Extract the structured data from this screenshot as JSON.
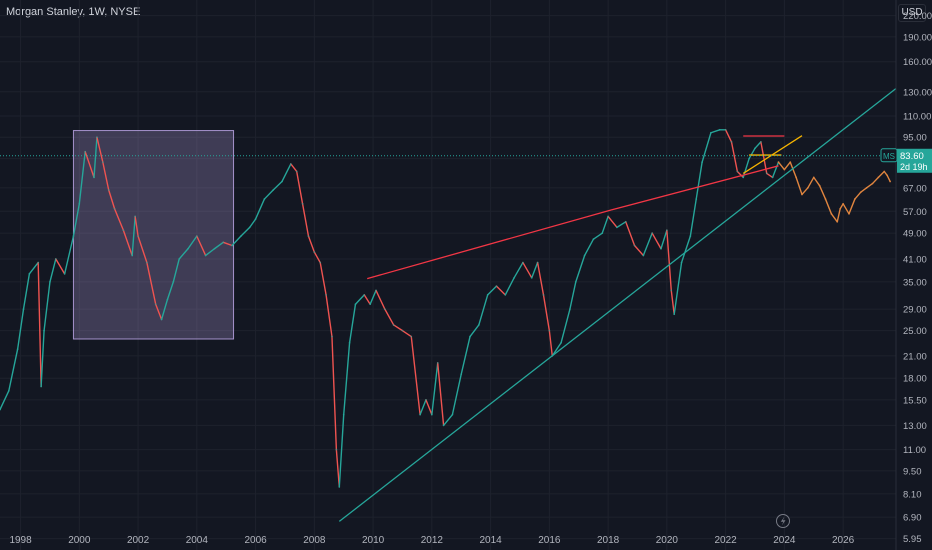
{
  "chart_data": {
    "type": "line",
    "title": "Morgan Stanley, 1W, NYSE",
    "currency": "USD",
    "y_scale": "log",
    "ylim": [
      5.5,
      245
    ],
    "xlim": [
      1997.3,
      2027.8
    ],
    "y_ticks": [
      "220.00",
      "190.00",
      "160.00",
      "130.00",
      "110.00",
      "95.00",
      "82.00",
      "67.00",
      "57.00",
      "49.00",
      "41.00",
      "35.00",
      "29.00",
      "25.00",
      "21.00",
      "18.00",
      "15.50",
      "13.00",
      "11.00",
      "9.50",
      "8.10",
      "6.90",
      "5.95"
    ],
    "x_ticks": [
      "1998",
      "2000",
      "2002",
      "2004",
      "2006",
      "2008",
      "2010",
      "2012",
      "2014",
      "2016",
      "2018",
      "2020",
      "2022",
      "2024",
      "2026"
    ],
    "price_label": {
      "symbol": "MS",
      "value": "83.60",
      "countdown": "2d 19h",
      "level": 83.6
    },
    "series": [
      {
        "role": "price-history",
        "color": "#26a69a",
        "down_color": "#ef5350",
        "x": [
          1997.3,
          1997.6,
          1997.9,
          1998.1,
          1998.3,
          1998.6,
          1998.7,
          1998.8,
          1999.0,
          1999.2,
          1999.5,
          1999.8,
          2000.0,
          2000.2,
          2000.5,
          2000.6,
          2000.8,
          2001.0,
          2001.2,
          2001.5,
          2001.8,
          2001.9,
          2002.0,
          2002.3,
          2002.6,
          2002.8,
          2003.0,
          2003.2,
          2003.4,
          2003.7,
          2004.0,
          2004.3,
          2004.6,
          2004.9,
          2005.2,
          2005.5,
          2005.8,
          2006.0,
          2006.3,
          2006.6,
          2006.9,
          2007.2,
          2007.4,
          2007.6,
          2007.8,
          2008.0,
          2008.2,
          2008.4,
          2008.6,
          2008.75,
          2008.85,
          2009.0,
          2009.2,
          2009.4,
          2009.7,
          2009.9,
          2010.1,
          2010.4,
          2010.7,
          2011.0,
          2011.3,
          2011.6,
          2011.8,
          2012.0,
          2012.2,
          2012.4,
          2012.7,
          2013.0,
          2013.3,
          2013.6,
          2013.9,
          2014.2,
          2014.5,
          2014.8,
          2015.1,
          2015.4,
          2015.6,
          2015.8,
          2016.0,
          2016.1,
          2016.4,
          2016.7,
          2016.9,
          2017.2,
          2017.5,
          2017.8,
          2018.0,
          2018.3,
          2018.6,
          2018.9,
          2019.2,
          2019.5,
          2019.8,
          2020.0,
          2020.15,
          2020.25,
          2020.5,
          2020.8,
          2021.0,
          2021.2,
          2021.5,
          2021.8,
          2022.0,
          2022.2,
          2022.4,
          2022.6,
          2022.8,
          2023.0,
          2023.2,
          2023.4,
          2023.6,
          2023.8
        ],
        "values": [
          14.5,
          16.5,
          22,
          29,
          37,
          40,
          17,
          25,
          35,
          41,
          37,
          48,
          60,
          86,
          72,
          95,
          80,
          66,
          58,
          50,
          42,
          55,
          48,
          40,
          30,
          27,
          31,
          35,
          41,
          44,
          48,
          42,
          44,
          46,
          45,
          48,
          51,
          54,
          62,
          66,
          70,
          79,
          75,
          60,
          48,
          43,
          40,
          32,
          24,
          11,
          8.5,
          14,
          23,
          30,
          32,
          30,
          33,
          29,
          26,
          25,
          24,
          14,
          15.5,
          14,
          20,
          13,
          14,
          18.5,
          24,
          26,
          32,
          34,
          32,
          36,
          40,
          36,
          40,
          32,
          25,
          21,
          23,
          29,
          35,
          42,
          47,
          49,
          55,
          51,
          53,
          45,
          42,
          49,
          44,
          50,
          33,
          28,
          40,
          48,
          62,
          80,
          98,
          100,
          100,
          92,
          75,
          72,
          82,
          88,
          92,
          74,
          72,
          80
        ]
      },
      {
        "role": "projection",
        "color": "#e0853f",
        "x": [
          2023.8,
          2024.0,
          2024.2,
          2024.4,
          2024.6,
          2024.8,
          2025.0,
          2025.2,
          2025.4,
          2025.6,
          2025.8,
          2025.9,
          2026.0,
          2026.2,
          2026.4,
          2026.6,
          2026.8,
          2027.0,
          2027.2,
          2027.4,
          2027.5,
          2027.6
        ],
        "values": [
          80,
          76,
          80,
          72,
          64,
          67,
          72,
          68,
          62,
          56,
          53,
          58,
          60,
          56,
          62,
          65,
          67,
          69,
          72,
          75,
          73,
          70
        ]
      }
    ],
    "annotations": [
      {
        "type": "rectangle",
        "color": "#b39ddb",
        "x0": 1999.8,
        "x1": 2005.25,
        "y0": 23.6,
        "y1": 99.5
      },
      {
        "type": "line",
        "color": "#26a69a",
        "x0": 2008.85,
        "y0": 6.7,
        "x1": 2027.8,
        "y1": 133
      },
      {
        "type": "line",
        "color": "#f23645",
        "x0": 2009.8,
        "y0": 35.8,
        "x1": 2018.1,
        "y1": 57.5
      },
      {
        "type": "line",
        "color": "#f23645",
        "x0": 2018.1,
        "y0": 57.5,
        "x1": 2023.8,
        "y1": 78
      },
      {
        "type": "line",
        "color": "#f23645",
        "x0": 2022.6,
        "y0": 95.8,
        "x1": 2024.0,
        "y1": 95.8
      },
      {
        "type": "line",
        "color": "#f7b500",
        "x0": 2022.6,
        "y0": 74,
        "x1": 2024.6,
        "y1": 96
      },
      {
        "type": "line",
        "color": "#f7b500",
        "x0": 2022.8,
        "y0": 84,
        "x1": 2023.9,
        "y1": 84
      }
    ]
  }
}
